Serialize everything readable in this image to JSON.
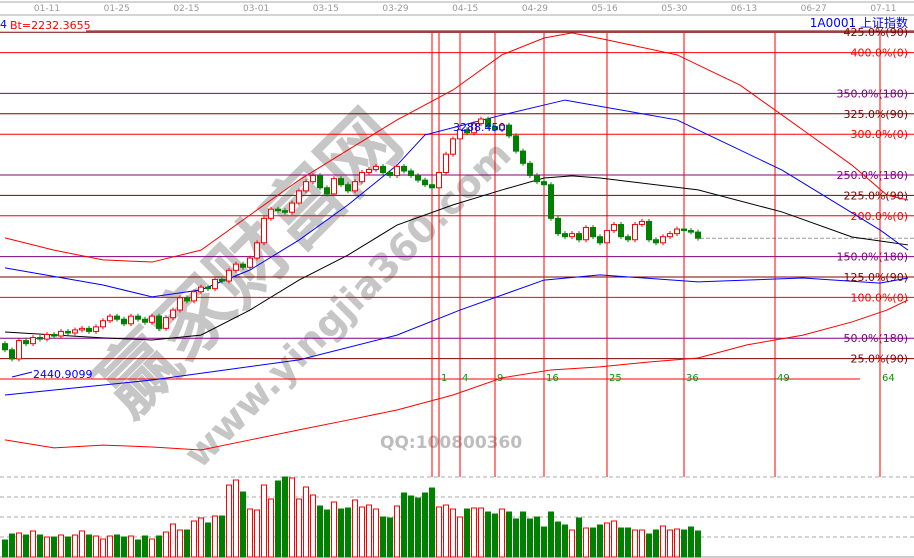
{
  "header": {
    "left_prefix": "4",
    "formula_label": "Bt=2232.3655",
    "symbol_label": "1A0001  上证指数"
  },
  "watermark": {
    "brand": "赢家财富网",
    "url": "www.yingjia360.com",
    "qq": "QQ:100800360"
  },
  "colors": {
    "up": "#ff0000",
    "down": "#008000",
    "ma_black": "#000000",
    "band_blue": "#0000ff",
    "band_red": "#ff0000",
    "level_180": "#800080",
    "level_90": "#800000",
    "level_0": "#ff0000",
    "text_blue": "#0000ff"
  },
  "chart_data": {
    "type": "candlestick",
    "x_ticks": [
      "01-11",
      "01-25",
      "02-15",
      "03-01",
      "03-15",
      "03-29",
      "04-15",
      "04-29",
      "05-16",
      "05-30",
      "06-13",
      "06-27",
      "07-11"
    ],
    "annotations": {
      "low_label": "2440.9099",
      "low_value": 2440.9099,
      "high_label": "3288.450",
      "high_value": 3288.45
    },
    "close": [
      2530,
      2500,
      2560,
      2550,
      2570,
      2565,
      2580,
      2575,
      2590,
      2585,
      2595,
      2600,
      2590,
      2605,
      2625,
      2640,
      2630,
      2615,
      2640,
      2630,
      2620,
      2640,
      2600,
      2635,
      2660,
      2700,
      2690,
      2720,
      2735,
      2730,
      2760,
      2755,
      2790,
      2810,
      2800,
      2830,
      2880,
      2960,
      2990,
      2985,
      2980,
      3010,
      3050,
      3080,
      3100,
      3060,
      3040,
      3090,
      3070,
      3050,
      3080,
      3110,
      3120,
      3130,
      3110,
      3100,
      3130,
      3115,
      3100,
      3085,
      3070,
      3060,
      3110,
      3170,
      3220,
      3250,
      3240,
      3270,
      3285,
      3260,
      3250,
      3265,
      3230,
      3180,
      3140,
      3100,
      3080,
      3070,
      2960,
      2910,
      2900,
      2910,
      2890,
      2930,
      2900,
      2880,
      2920,
      2940,
      2900,
      2890,
      2940,
      2950,
      2890,
      2880,
      2900,
      2910,
      2925,
      2920,
      2915,
      2895
    ],
    "volume": [
      17,
      23,
      24,
      22,
      26,
      22,
      20,
      20,
      22,
      20,
      22,
      26,
      22,
      21,
      18,
      21,
      22,
      20,
      21,
      17,
      21,
      18,
      21,
      25,
      33,
      27,
      27,
      36,
      39,
      34,
      41,
      41,
      72,
      77,
      65,
      48,
      47,
      72,
      58,
      76,
      80,
      79,
      58,
      70,
      62,
      51,
      47,
      55,
      48,
      49,
      57,
      50,
      52,
      48,
      40,
      39,
      51,
      64,
      61,
      59,
      64,
      69,
      50,
      52,
      48,
      40,
      48,
      49,
      49,
      45,
      43,
      48,
      45,
      38,
      45,
      38,
      40,
      30,
      45,
      35,
      32,
      27,
      39,
      29,
      29,
      32,
      34,
      36,
      29,
      29,
      27,
      27,
      23,
      27,
      31,
      27,
      28,
      27,
      30,
      26
    ],
    "volume_ylim": [
      0,
      80
    ],
    "lines": {
      "ma_black": [
        [
          0,
          2588
        ],
        [
          14,
          2569
        ],
        [
          21,
          2562
        ],
        [
          28,
          2578
        ],
        [
          35,
          2660
        ],
        [
          42,
          2758
        ],
        [
          49,
          2840
        ],
        [
          56,
          2938
        ],
        [
          64,
          3004
        ],
        [
          71,
          3053
        ],
        [
          77,
          3092
        ],
        [
          81,
          3099
        ],
        [
          85,
          3092
        ],
        [
          99,
          3053
        ],
        [
          111,
          2981
        ],
        [
          121,
          2899
        ],
        [
          129,
          2873
        ]
      ],
      "blue_upper": [
        [
          0,
          2798
        ],
        [
          14,
          2742
        ],
        [
          21,
          2703
        ],
        [
          28,
          2726
        ],
        [
          35,
          2791
        ],
        [
          42,
          2889
        ],
        [
          49,
          3004
        ],
        [
          56,
          3134
        ],
        [
          60,
          3233
        ],
        [
          71,
          3298
        ],
        [
          80,
          3347
        ],
        [
          96,
          3282
        ],
        [
          111,
          3118
        ],
        [
          125,
          2922
        ],
        [
          129,
          2856
        ]
      ],
      "blue_lower": [
        [
          0,
          2382
        ],
        [
          21,
          2431
        ],
        [
          42,
          2497
        ],
        [
          56,
          2578
        ],
        [
          65,
          2660
        ],
        [
          77,
          2758
        ],
        [
          85,
          2775
        ],
        [
          99,
          2752
        ],
        [
          114,
          2765
        ],
        [
          125,
          2748
        ],
        [
          129,
          2765
        ]
      ],
      "red_upper": [
        [
          0,
          2896
        ],
        [
          7,
          2856
        ],
        [
          14,
          2824
        ],
        [
          21,
          2817
        ],
        [
          28,
          2856
        ],
        [
          35,
          2971
        ],
        [
          42,
          3085
        ],
        [
          49,
          3184
        ],
        [
          56,
          3282
        ],
        [
          64,
          3380
        ],
        [
          71,
          3495
        ],
        [
          77,
          3550
        ],
        [
          81,
          3567
        ],
        [
          86,
          3544
        ],
        [
          96,
          3495
        ],
        [
          105,
          3396
        ],
        [
          114,
          3249
        ],
        [
          121,
          3134
        ],
        [
          126,
          3036
        ],
        [
          129,
          3020
        ]
      ],
      "red_lower": [
        [
          0,
          2235
        ],
        [
          7,
          2209
        ],
        [
          14,
          2218
        ],
        [
          21,
          2212
        ],
        [
          28,
          2202
        ],
        [
          35,
          2235
        ],
        [
          42,
          2268
        ],
        [
          49,
          2300
        ],
        [
          56,
          2333
        ],
        [
          64,
          2382
        ],
        [
          71,
          2438
        ],
        [
          78,
          2464
        ],
        [
          85,
          2474
        ],
        [
          92,
          2490
        ],
        [
          99,
          2503
        ],
        [
          106,
          2546
        ],
        [
          114,
          2578
        ],
        [
          121,
          2621
        ],
        [
          126,
          2660
        ],
        [
          129,
          2693
        ]
      ]
    },
    "levels": [
      {
        "pct": 425,
        "label": "425.0%(90)",
        "group": 90
      },
      {
        "pct": 400,
        "label": "400.0%(0)",
        "group": 0
      },
      {
        "pct": 350,
        "label": "350.0%(180)",
        "group": 180
      },
      {
        "pct": 325,
        "label": "325.0%(90)",
        "group": 90
      },
      {
        "pct": 300,
        "label": "300.0%(0)",
        "group": 0
      },
      {
        "pct": 250,
        "label": "250.0%(180)",
        "group": 180
      },
      {
        "pct": 225,
        "label": "225.0%(90)",
        "group": 90
      },
      {
        "pct": 200,
        "label": "200.0%(0)",
        "group": 0
      },
      {
        "pct": 150,
        "label": "150.0%(180)",
        "group": 180
      },
      {
        "pct": 125,
        "label": "125.0%(90)",
        "group": 90
      },
      {
        "pct": 100,
        "label": "100.0%(0)",
        "group": 0
      },
      {
        "pct": 50,
        "label": "50.0%(180)",
        "group": 180
      },
      {
        "pct": 25,
        "label": "25.0%(90)",
        "group": 90
      }
    ],
    "square_time_lines": {
      "start_index": 61,
      "labels": [
        "1",
        "4",
        "9",
        "16",
        "25",
        "36",
        "49",
        "64"
      ],
      "offsets": [
        1,
        4,
        9,
        16,
        25,
        36,
        49,
        64
      ]
    }
  }
}
